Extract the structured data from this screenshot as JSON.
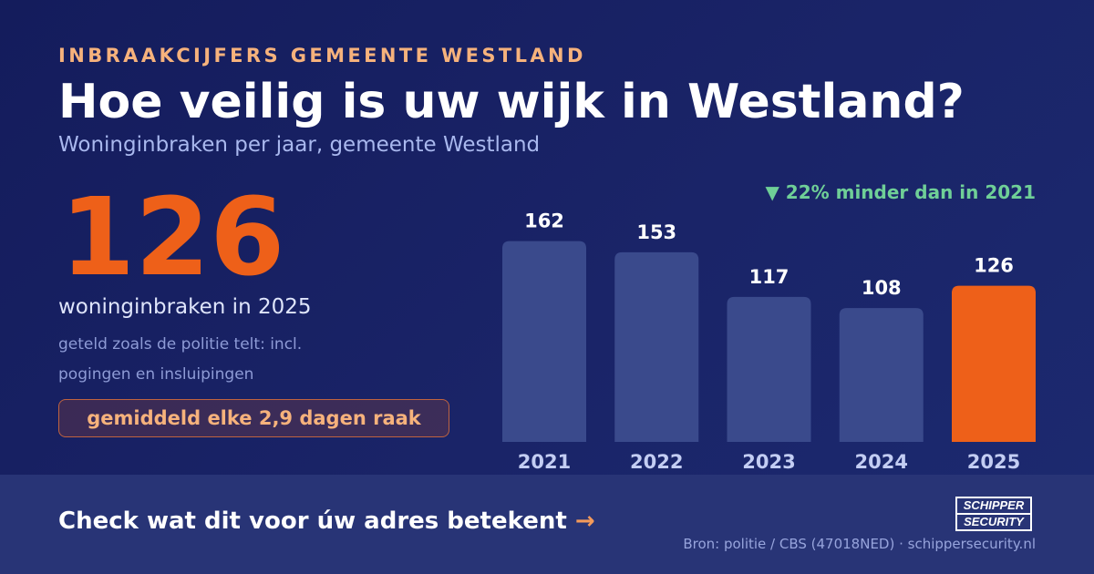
{
  "header": {
    "eyebrow": "INBRAAKCIJFERS GEMEENTE WESTLAND",
    "title": "Hoe veilig is uw wijk in Westland?",
    "subtitle": "Woninginbraken per jaar, gemeente Westland"
  },
  "highlight": {
    "number": "126",
    "caption": "woninginbraken in 2025",
    "note": "geteld zoals de politie telt: incl. pogingen en insluipingen",
    "pill": "gemiddeld elke 2,9 dagen raak"
  },
  "delta": "▼ 22% minder dan in 2021",
  "chart_data": {
    "type": "bar",
    "categories": [
      "2021",
      "2022",
      "2023",
      "2024",
      "2025"
    ],
    "values": [
      162,
      153,
      117,
      108,
      126
    ],
    "highlight_category": "2025",
    "colors": {
      "bar": "#3a4a8c",
      "highlight": "#ee6019",
      "value_label": "#ffffff",
      "tick_label": "#c3cdf3"
    },
    "grid": false,
    "legend": "none"
  },
  "footer": {
    "cta": "Check wat dit voor úw adres betekent",
    "arrow": "→",
    "source": "Bron: politie / CBS (47018NED) · schippersecurity.nl",
    "logo_line1": "SCHIPPER",
    "logo_line2": "SECURITY"
  },
  "colors": {
    "background": "#1a2468",
    "accent": "#ee6019",
    "eyebrow": "#f6b27c",
    "positive": "#6fcf97"
  }
}
